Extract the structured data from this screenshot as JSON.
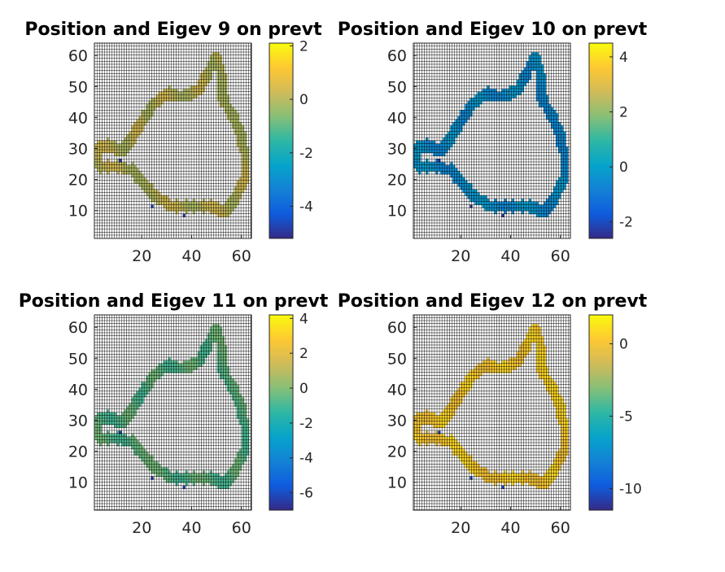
{
  "chart_data": [
    {
      "type": "heatmap",
      "title": "Position and Eigev 9 on prevt",
      "xlim": [
        1,
        64
      ],
      "ylim": [
        1,
        64
      ],
      "xticks": [
        20,
        40,
        60
      ],
      "yticks": [
        10,
        20,
        30,
        40,
        50,
        60
      ],
      "grid": true,
      "colorbar": {
        "clim": [
          -5.2,
          2.1
        ],
        "ticks": [
          2,
          0,
          -2,
          -4
        ]
      },
      "ring_value": 0.1,
      "outlier_value": -4.8,
      "colormap": "parula"
    },
    {
      "type": "heatmap",
      "title": "Position and Eigev 10 on prevt",
      "xlim": [
        1,
        64
      ],
      "ylim": [
        1,
        64
      ],
      "xticks": [
        20,
        40,
        60
      ],
      "yticks": [
        10,
        20,
        30,
        40,
        50,
        60
      ],
      "grid": true,
      "colorbar": {
        "clim": [
          -2.6,
          4.5
        ],
        "ticks": [
          4,
          2,
          0,
          -2
        ]
      },
      "ring_value": -0.4,
      "outlier_value": -2.5,
      "colormap": "parula"
    },
    {
      "type": "heatmap",
      "title": "Position and Eigev 11 on prevt",
      "xlim": [
        1,
        64
      ],
      "ylim": [
        1,
        64
      ],
      "xticks": [
        20,
        40,
        60
      ],
      "yticks": [
        10,
        20,
        30,
        40,
        50,
        60
      ],
      "grid": true,
      "colorbar": {
        "clim": [
          -7,
          4.2
        ],
        "ticks": [
          4,
          2,
          0,
          -2,
          -4,
          -6
        ]
      },
      "ring_value": -0.6,
      "outlier_value": -6.5,
      "colormap": "parula"
    },
    {
      "type": "heatmap",
      "title": "Position and Eigev 12 on prevt",
      "xlim": [
        1,
        64
      ],
      "ylim": [
        1,
        64
      ],
      "xticks": [
        20,
        40,
        60
      ],
      "yticks": [
        10,
        20,
        30,
        40,
        50,
        60
      ],
      "grid": true,
      "colorbar": {
        "clim": [
          -11.5,
          2
        ],
        "ticks": [
          0,
          -5,
          -10
        ]
      },
      "ring_value": 0.4,
      "outlier_value": -10.5,
      "colormap": "parula"
    }
  ],
  "colors": {
    "parula": [
      "#352a87",
      "#0f5cdd",
      "#1481d6",
      "#06a4ca",
      "#2eb7a4",
      "#87bf77",
      "#d1bb59",
      "#fec832",
      "#f9fb0e"
    ],
    "grid": "#000000",
    "axis": "#262626"
  }
}
